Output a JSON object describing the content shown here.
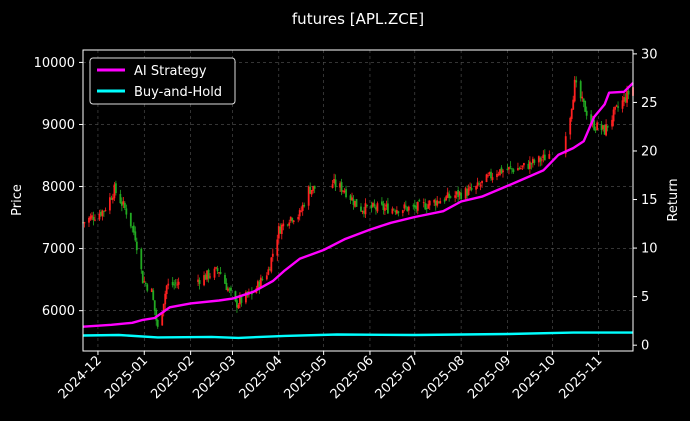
{
  "chart_data": {
    "type": "candlestick-with-lines",
    "title": "futures [APL.ZCE]",
    "ylabel_left": "Price",
    "ylabel_right": "Return",
    "ylim_left": [
      5350,
      10200
    ],
    "ylim_right": [
      -0.6,
      30.4
    ],
    "yticks_left": [
      6000,
      7000,
      8000,
      9000,
      10000
    ],
    "yticks_right": [
      0,
      5,
      10,
      15,
      20,
      25,
      30
    ],
    "x_range": [
      "2024-11-21",
      "2025-11-24"
    ],
    "x_ticks": [
      "2024-12-01",
      "2025-01-01",
      "2025-02-01",
      "2025-03-01",
      "2025-04-01",
      "2025-05-01",
      "2025-06-01",
      "2025-07-01",
      "2025-08-01",
      "2025-09-01",
      "2025-10-01",
      "2025-11-01"
    ],
    "x_tick_labels": [
      "2024-12",
      "2025-01",
      "2025-02",
      "2025-03",
      "2025-04",
      "2025-05",
      "2025-06",
      "2025-07",
      "2025-08",
      "2025-09",
      "2025-10",
      "2025-11"
    ],
    "grid": true,
    "legend_position": "top-left",
    "colors": {
      "up": "#ff2020",
      "down": "#22aa22",
      "ai": "#ff00ff",
      "bh": "#00ffff",
      "grid": "#555555",
      "background": "#000000"
    },
    "price_anchors": [
      {
        "date": "2024-11-21",
        "price": 7420
      },
      {
        "date": "2024-12-05",
        "price": 7620
      },
      {
        "date": "2024-12-12",
        "price": 7950
      },
      {
        "date": "2024-12-20",
        "price": 7600
      },
      {
        "date": "2024-12-26",
        "price": 7200
      },
      {
        "date": "2024-12-31",
        "price": 6500
      },
      {
        "date": "2025-01-06",
        "price": 6300
      },
      {
        "date": "2025-01-10",
        "price": 5700
      },
      {
        "date": "2025-01-16",
        "price": 6400
      },
      {
        "date": "2025-02-06",
        "price": 6500
      },
      {
        "date": "2025-02-20",
        "price": 6650
      },
      {
        "date": "2025-03-03",
        "price": 6100
      },
      {
        "date": "2025-03-15",
        "price": 6300
      },
      {
        "date": "2025-03-25",
        "price": 6650
      },
      {
        "date": "2025-04-01",
        "price": 7300
      },
      {
        "date": "2025-04-08",
        "price": 7500
      },
      {
        "date": "2025-04-15",
        "price": 7550
      },
      {
        "date": "2025-04-21",
        "price": 7950
      },
      {
        "date": "2025-05-07",
        "price": 8050
      },
      {
        "date": "2025-05-15",
        "price": 7950
      },
      {
        "date": "2025-05-25",
        "price": 7650
      },
      {
        "date": "2025-06-10",
        "price": 7650
      },
      {
        "date": "2025-07-01",
        "price": 7650
      },
      {
        "date": "2025-07-20",
        "price": 7800
      },
      {
        "date": "2025-08-10",
        "price": 7950
      },
      {
        "date": "2025-08-25",
        "price": 8250
      },
      {
        "date": "2025-09-10",
        "price": 8300
      },
      {
        "date": "2025-09-25",
        "price": 8450
      },
      {
        "date": "2025-10-05",
        "price": 8650
      },
      {
        "date": "2025-10-12",
        "price": 9000
      },
      {
        "date": "2025-10-16",
        "price": 9650
      },
      {
        "date": "2025-10-22",
        "price": 9300
      },
      {
        "date": "2025-10-28",
        "price": 9000
      },
      {
        "date": "2025-11-05",
        "price": 8900
      },
      {
        "date": "2025-11-12",
        "price": 9200
      },
      {
        "date": "2025-11-24",
        "price": 9600
      }
    ],
    "series": [
      {
        "name": "AI Strategy",
        "color": "#ff00ff",
        "points": [
          {
            "date": "2024-11-21",
            "value": 1.9
          },
          {
            "date": "2024-12-10",
            "value": 2.1
          },
          {
            "date": "2024-12-24",
            "value": 2.3
          },
          {
            "date": "2024-12-31",
            "value": 2.6
          },
          {
            "date": "2025-01-08",
            "value": 2.8
          },
          {
            "date": "2025-01-18",
            "value": 3.9
          },
          {
            "date": "2025-02-01",
            "value": 4.3
          },
          {
            "date": "2025-02-20",
            "value": 4.6
          },
          {
            "date": "2025-03-01",
            "value": 4.8
          },
          {
            "date": "2025-03-15",
            "value": 5.5
          },
          {
            "date": "2025-03-28",
            "value": 6.6
          },
          {
            "date": "2025-04-05",
            "value": 7.7
          },
          {
            "date": "2025-04-15",
            "value": 8.9
          },
          {
            "date": "2025-05-01",
            "value": 9.8
          },
          {
            "date": "2025-05-15",
            "value": 10.9
          },
          {
            "date": "2025-06-01",
            "value": 11.9
          },
          {
            "date": "2025-06-15",
            "value": 12.6
          },
          {
            "date": "2025-07-01",
            "value": 13.2
          },
          {
            "date": "2025-07-20",
            "value": 13.8
          },
          {
            "date": "2025-08-01",
            "value": 14.8
          },
          {
            "date": "2025-08-15",
            "value": 15.3
          },
          {
            "date": "2025-09-01",
            "value": 16.4
          },
          {
            "date": "2025-09-10",
            "value": 17.0
          },
          {
            "date": "2025-09-25",
            "value": 18.0
          },
          {
            "date": "2025-10-05",
            "value": 19.6
          },
          {
            "date": "2025-10-15",
            "value": 20.3
          },
          {
            "date": "2025-10-22",
            "value": 21.0
          },
          {
            "date": "2025-10-29",
            "value": 23.5
          },
          {
            "date": "2025-11-05",
            "value": 24.8
          },
          {
            "date": "2025-11-08",
            "value": 26.0
          },
          {
            "date": "2025-11-18",
            "value": 26.1
          },
          {
            "date": "2025-11-24",
            "value": 27.0
          }
        ]
      },
      {
        "name": "Buy-and-Hold",
        "color": "#00ffff",
        "points": [
          {
            "date": "2024-11-21",
            "value": 1.0
          },
          {
            "date": "2024-12-15",
            "value": 1.05
          },
          {
            "date": "2025-01-10",
            "value": 0.8
          },
          {
            "date": "2025-02-15",
            "value": 0.85
          },
          {
            "date": "2025-03-05",
            "value": 0.75
          },
          {
            "date": "2025-04-05",
            "value": 0.95
          },
          {
            "date": "2025-05-10",
            "value": 1.1
          },
          {
            "date": "2025-07-01",
            "value": 1.05
          },
          {
            "date": "2025-09-01",
            "value": 1.15
          },
          {
            "date": "2025-10-15",
            "value": 1.3
          },
          {
            "date": "2025-11-24",
            "value": 1.3
          }
        ]
      }
    ]
  }
}
